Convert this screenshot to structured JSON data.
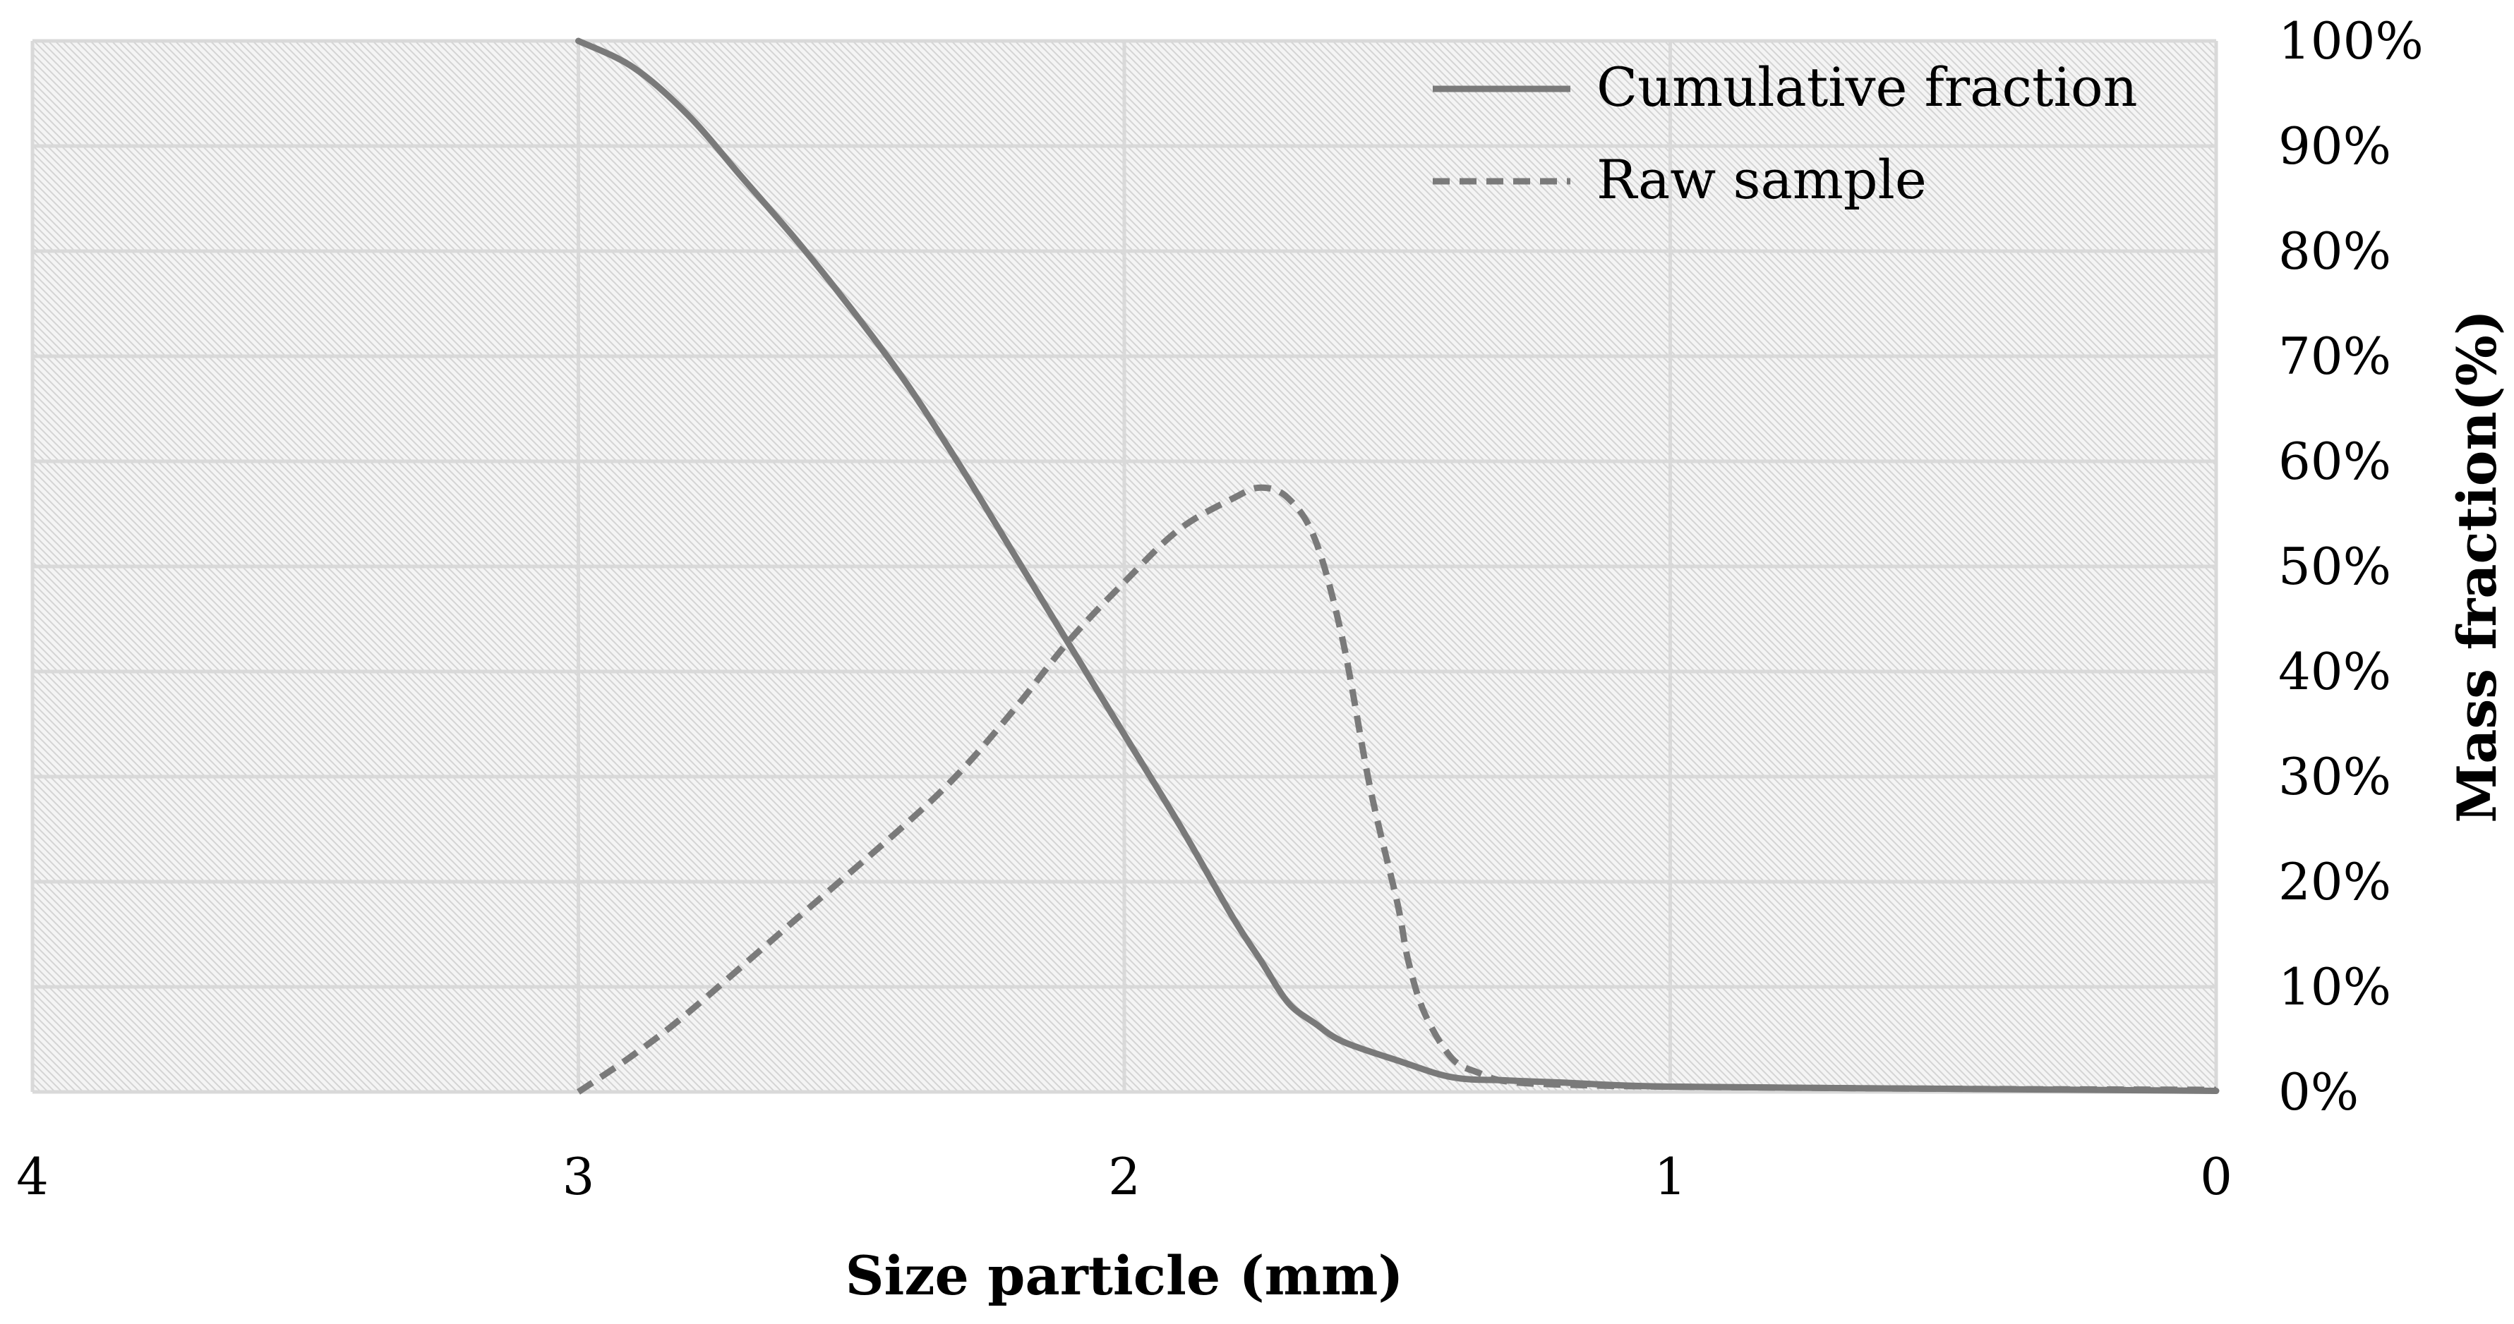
{
  "chart_data": {
    "type": "line",
    "title": "",
    "xlabel": "Size particle (mm)",
    "ylabel": "Mass fraction(%)",
    "xlim": [
      4,
      0
    ],
    "ylim": [
      0,
      100
    ],
    "x_ticks": [
      "4",
      "3",
      "2",
      "1",
      "0"
    ],
    "y_ticks": [
      "0%",
      "10%",
      "20%",
      "30%",
      "40%",
      "50%",
      "60%",
      "70%",
      "80%",
      "90%",
      "100%"
    ],
    "y_axis_side": "right",
    "grid": true,
    "legend_position": "top-right",
    "series": [
      {
        "name": "Cumulative fraction",
        "style": "solid",
        "color": "#7a7a7a",
        "x": [
          3.0,
          2.9,
          2.8,
          2.7,
          2.6,
          2.5,
          2.4,
          2.3,
          2.2,
          2.1,
          2.0,
          1.9,
          1.8,
          1.75,
          1.7,
          1.65,
          1.6,
          1.5,
          1.4,
          1.3,
          1.2,
          1.0,
          0.5,
          0.0
        ],
        "y": [
          100,
          97.5,
          93,
          87,
          81,
          74.5,
          67.5,
          59.5,
          51,
          42.5,
          34,
          25.5,
          16.5,
          12.5,
          8.5,
          6.5,
          4.8,
          3.0,
          1.4,
          1.1,
          0.9,
          0.5,
          0.3,
          0.1
        ]
      },
      {
        "name": "Raw sample",
        "style": "dashed",
        "color": "#7a7a7a",
        "x": [
          3.0,
          2.9,
          2.8,
          2.6,
          2.4,
          2.3,
          2.2,
          2.1,
          2.0,
          1.9,
          1.8,
          1.75,
          1.7,
          1.65,
          1.6,
          1.55,
          1.5,
          1.48,
          1.45,
          1.4,
          1.35,
          1.3,
          1.2,
          1.0,
          0.5,
          0.0
        ],
        "y": [
          0,
          3.5,
          7.5,
          16.5,
          25.5,
          30.5,
          36.5,
          43,
          48.5,
          53.5,
          56.5,
          57.5,
          56.5,
          52.5,
          43,
          29,
          18,
          12.5,
          7.5,
          3.2,
          1.8,
          1.0,
          0.7,
          0.5,
          0.3,
          0.2
        ]
      }
    ]
  }
}
